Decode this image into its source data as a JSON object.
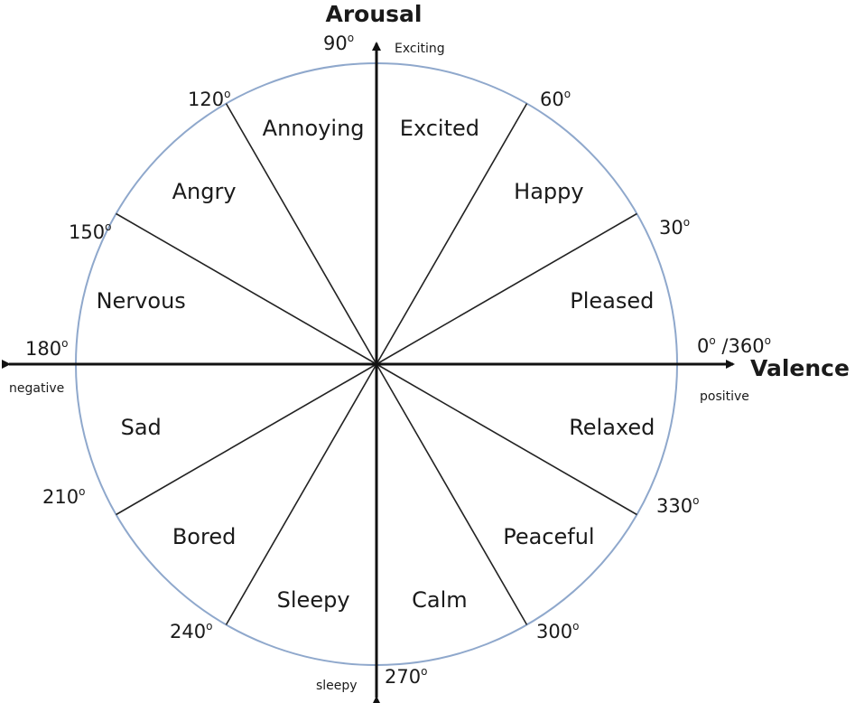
{
  "axes": {
    "vertical_title": "Arousal",
    "horizontal_title": "Valence",
    "top_label": "Exciting",
    "bottom_label": "sleepy",
    "left_label": "negative",
    "right_label": "positive"
  },
  "degree_marks": [
    {
      "text": "0",
      "suffix": " /360",
      "angle": 0
    },
    {
      "text": "30",
      "angle": 30
    },
    {
      "text": "60",
      "angle": 60
    },
    {
      "text": "90",
      "angle": 90
    },
    {
      "text": "120",
      "angle": 120
    },
    {
      "text": "150",
      "angle": 150
    },
    {
      "text": "180",
      "angle": 180
    },
    {
      "text": "210",
      "angle": 210
    },
    {
      "text": "240",
      "angle": 240
    },
    {
      "text": "270",
      "angle": 270
    },
    {
      "text": "300",
      "angle": 300
    },
    {
      "text": "330",
      "angle": 330
    }
  ],
  "degree_symbol": "o",
  "sector_angles": [
    30,
    60,
    120,
    150,
    210,
    240,
    300,
    330
  ],
  "emotions": [
    {
      "label": "Pleased",
      "angle": 15
    },
    {
      "label": "Happy",
      "angle": 45
    },
    {
      "label": "Excited",
      "angle": 75
    },
    {
      "label": "Annoying",
      "angle": 105
    },
    {
      "label": "Angry",
      "angle": 135
    },
    {
      "label": "Nervous",
      "angle": 165
    },
    {
      "label": "Sad",
      "angle": 195
    },
    {
      "label": "Bored",
      "angle": 225
    },
    {
      "label": "Sleepy",
      "angle": 255
    },
    {
      "label": "Calm",
      "angle": 285
    },
    {
      "label": "Peaceful",
      "angle": 315
    },
    {
      "label": "Relaxed",
      "angle": 345
    }
  ],
  "colors": {
    "circle": "#8fa8cc",
    "axis": "#111111",
    "spoke": "#222222"
  }
}
